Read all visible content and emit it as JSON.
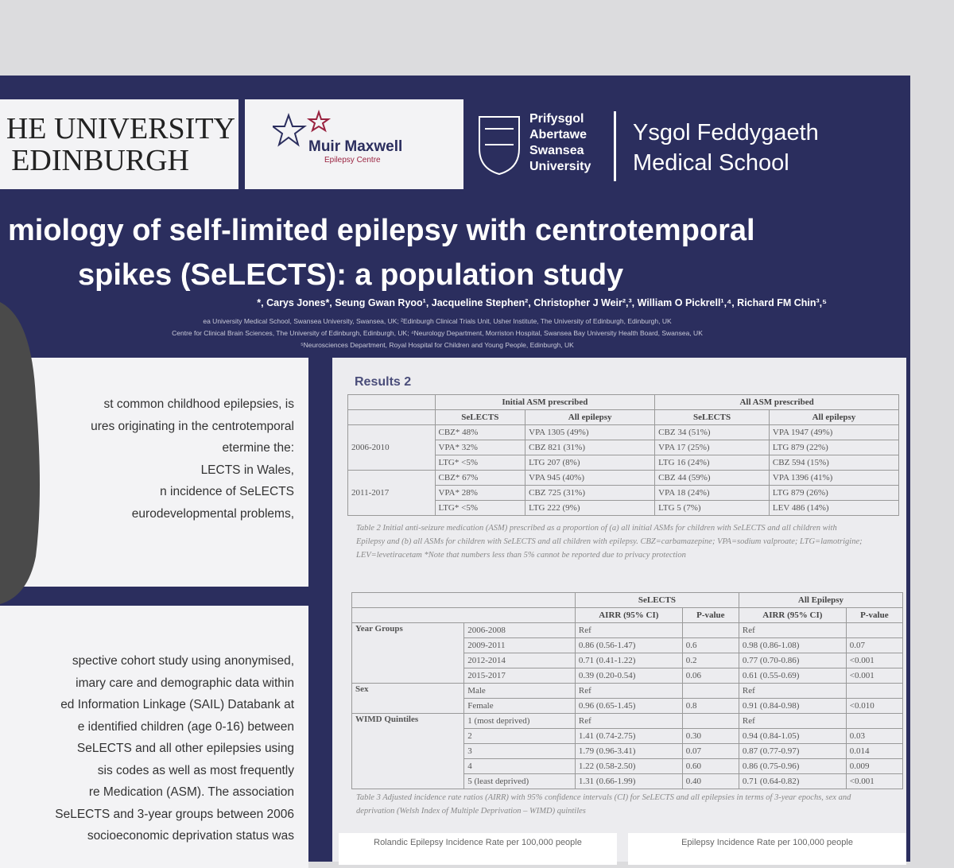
{
  "header": {
    "edinburgh": [
      "HE UNIVERSITY",
      "EDINBURGH"
    ],
    "muir": [
      "Muir Maxwell",
      "Epilepsy Centre"
    ],
    "swansea": [
      "Prifysgol",
      "Abertawe",
      "Swansea",
      "University"
    ],
    "school": [
      "Ysgol Feddygaeth",
      "Medical School"
    ]
  },
  "title": [
    "miology of self-limited epilepsy with centrotemporal",
    "spikes (SeLECTS): a population study"
  ],
  "authors": "*, Carys Jones*, Seung Gwan Ryoo¹, Jacqueline Stephen², Christopher J Weir²,³, William O Pickrell¹,⁴, Richard FM Chin³,⁵",
  "affiliations": [
    "ea University Medical School, Swansea University, Swansea, UK; ²Edinburgh Clinical Trials Unit, Usher Institute, The University of Edinburgh, Edinburgh, UK",
    "Centre for Clinical Brain Sciences, The University of Edinburgh, Edinburgh, UK; ⁴Neurology Department, Morriston Hospital, Swansea Bay University Health Board, Swansea, UK",
    "⁵Neurosciences Department, Royal Hospital for Children and Young People, Edinburgh, UK"
  ],
  "intro": [
    "st common childhood epilepsies, is",
    "ures originating in the centrotemporal",
    "etermine the:",
    "LECTS in Wales,",
    "n incidence of SeLECTS",
    "eurodevelopmental problems,"
  ],
  "methods": [
    "spective cohort study using anonymised,",
    "imary care and demographic data within",
    "ed Information Linkage (SAIL) Databank at",
    "e identified children (age 0-16) between",
    "SeLECTS and all other epilepsies using",
    "sis codes as well as most frequently",
    "re Medication (ASM). The association",
    "SeLECTS and 3-year groups between 2006",
    "socioeconomic deprivation status was"
  ],
  "results": {
    "heading": "Results 2",
    "table1": {
      "groups": [
        "Initial ASM prescribed",
        "All ASM prescribed"
      ],
      "columns": [
        "SeLECTS",
        "All epilepsy",
        "SeLECTS",
        "All epilepsy"
      ],
      "periods": [
        {
          "period": "2006-2010",
          "rows": [
            [
              "CBZ* 48%",
              "VPA 1305 (49%)",
              "CBZ 34 (51%)",
              "VPA 1947 (49%)"
            ],
            [
              "VPA* 32%",
              "CBZ 821 (31%)",
              "VPA 17 (25%)",
              "LTG 879 (22%)"
            ],
            [
              "LTG* <5%",
              "LTG 207 (8%)",
              "LTG 16 (24%)",
              "CBZ 594 (15%)"
            ]
          ]
        },
        {
          "period": "2011-2017",
          "rows": [
            [
              "CBZ* 67%",
              "VPA 945 (40%)",
              "CBZ 44 (59%)",
              "VPA 1396 (41%)"
            ],
            [
              "VPA* 28%",
              "CBZ 725 (31%)",
              "VPA 18 (24%)",
              "LTG 879 (26%)"
            ],
            [
              "LTG* <5%",
              "LTG 222 (9%)",
              "LTG 5 (7%)",
              "LEV 486 (14%)"
            ]
          ]
        }
      ]
    },
    "caption1": "Table 2 Initial anti-seizure medication (ASM) prescribed as a proportion of (a) all initial ASMs for children with SeLECTS and all children with Epilepsy and (b) all ASMs for children with SeLECTS and all children with epilepsy. CBZ=carbamazepine; VPA=sodium valproate; LTG=lamotrigine; LEV=levetiracetam *Note that numbers less than 5% cannot be reported due to privacy protection",
    "table2": {
      "groups": [
        "SeLECTS",
        "All Epilepsy"
      ],
      "columns": [
        "AIRR (95% CI)",
        "P-value",
        "AIRR (95% CI)",
        "P-value"
      ],
      "sections": [
        {
          "label": "Year Groups",
          "rows": [
            [
              "2006-2008",
              "Ref",
              null,
              "Ref",
              null
            ],
            [
              "2009-2011",
              "0.86 (0.56-1.47)",
              "0.6",
              "0.98 (0.86-1.08)",
              "0.07"
            ],
            [
              "2012-2014",
              "0.71 (0.41-1.22)",
              "0.2",
              "0.77 (0.70-0.86)",
              "<0.001"
            ],
            [
              "2015-2017",
              "0.39 (0.20-0.54)",
              "0.06",
              "0.61 (0.55-0.69)",
              "<0.001"
            ]
          ]
        },
        {
          "label": "Sex",
          "rows": [
            [
              "Male",
              "Ref",
              null,
              "Ref",
              null
            ],
            [
              "Female",
              "0.96 (0.65-1.45)",
              "0.8",
              "0.91 (0.84-0.98)",
              "<0.010"
            ]
          ]
        },
        {
          "label": "WIMD Quintiles",
          "rows": [
            [
              "1 (most deprived)",
              "Ref",
              null,
              "Ref",
              null
            ],
            [
              "2",
              "1.41 (0.74-2.75)",
              "0.30",
              "0.94 (0.84-1.05)",
              "0.03"
            ],
            [
              "3",
              "1.79 (0.96-3.41)",
              "0.07",
              "0.87 (0.77-0.97)",
              "0.014"
            ],
            [
              "4",
              "1.22 (0.58-2.50)",
              "0.60",
              "0.86 (0.75-0.96)",
              "0.009"
            ],
            [
              "5 (least deprived)",
              "1.31 (0.66-1.99)",
              "0.40",
              "0.71 (0.64-0.82)",
              "<0.001"
            ]
          ]
        }
      ]
    },
    "caption2": "Table 3 Adjusted incidence rate ratios (AIRR) with 95% confidence intervals (CI) for SeLECTS and all epilepsies in terms of 3-year epochs, sex and deprivation (Welsh Index of Multiple Deprivation – WIMD) quintiles",
    "footer": [
      "Rolandic Epilepsy Incidence Rate per 100,000 people",
      "Epilepsy Incidence Rate per 100,000 people"
    ]
  }
}
